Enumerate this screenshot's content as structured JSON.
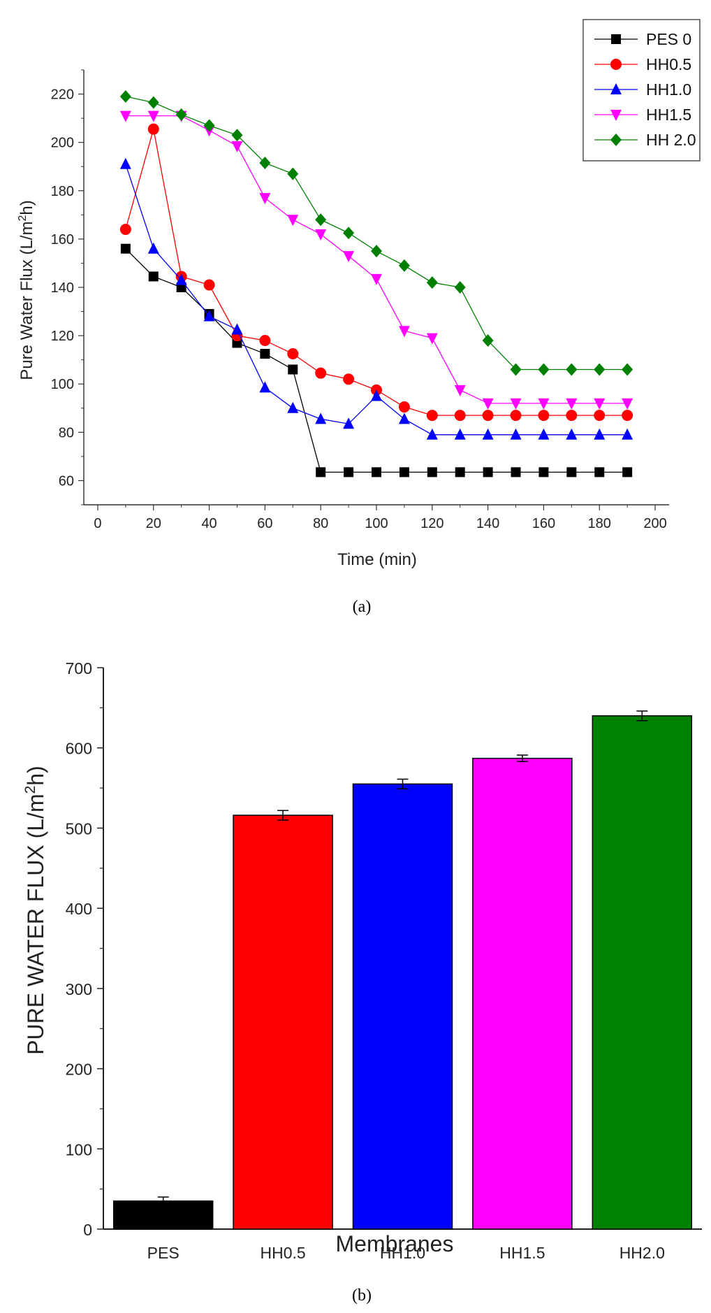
{
  "chart_data": [
    {
      "type": "line",
      "panel_label": "(a)",
      "xlabel": "Time (min)",
      "ylabel": "Pure Water Flux (L/m2h)",
      "ylabel_parts": {
        "pre": "Pure Water Flux (L/m",
        "sup": "2",
        "post": "h)"
      },
      "xlim": [
        -5,
        205
      ],
      "ylim": [
        50,
        230
      ],
      "xticks": [
        0,
        20,
        40,
        60,
        80,
        100,
        120,
        140,
        160,
        180,
        200
      ],
      "yticks": [
        60,
        80,
        100,
        120,
        140,
        160,
        180,
        200,
        220
      ],
      "legend_position": "top-right",
      "series": [
        {
          "name": "PES 0",
          "color": "#000000",
          "marker": "square",
          "x": [
            10,
            20,
            30,
            40,
            50,
            60,
            70,
            80,
            90,
            100,
            110,
            120,
            130,
            140,
            150,
            160,
            170,
            180,
            190
          ],
          "y": [
            156,
            144.5,
            140,
            129,
            117,
            112.5,
            106,
            63.5,
            63.5,
            63.5,
            63.5,
            63.5,
            63.5,
            63.5,
            63.5,
            63.5,
            63.5,
            63.5,
            63.5
          ]
        },
        {
          "name": "HH0.5",
          "color": "#ff0000",
          "marker": "circle",
          "x": [
            10,
            20,
            30,
            40,
            50,
            60,
            70,
            80,
            90,
            100,
            110,
            120,
            130,
            140,
            150,
            160,
            170,
            180,
            190
          ],
          "y": [
            164,
            205.5,
            144.5,
            141,
            120,
            118,
            112.5,
            104.5,
            102,
            97.5,
            90.5,
            87,
            87,
            87,
            87,
            87,
            87,
            87,
            87
          ]
        },
        {
          "name": "HH1.0",
          "color": "#0000ff",
          "marker": "triangle-up",
          "x": [
            10,
            20,
            30,
            40,
            50,
            60,
            70,
            80,
            90,
            100,
            110,
            120,
            130,
            140,
            150,
            160,
            170,
            180,
            190
          ],
          "y": [
            191,
            156,
            143,
            128,
            122.5,
            98.5,
            90,
            85.5,
            83.5,
            95,
            85.5,
            79,
            79,
            79,
            79,
            79,
            79,
            79,
            79
          ]
        },
        {
          "name": "HH1.5",
          "color": "#ff00ff",
          "marker": "triangle-down",
          "x": [
            10,
            20,
            30,
            40,
            50,
            60,
            70,
            80,
            90,
            100,
            110,
            120,
            130,
            140,
            150,
            160,
            170,
            180,
            190
          ],
          "y": [
            211,
            211,
            211,
            205,
            198.5,
            177,
            168,
            162,
            153,
            143.5,
            122,
            119,
            97.5,
            92,
            92,
            92,
            92,
            92,
            92
          ]
        },
        {
          "name": "HH 2.0",
          "color": "#008000",
          "marker": "diamond",
          "x": [
            10,
            20,
            30,
            40,
            50,
            60,
            70,
            80,
            90,
            100,
            110,
            120,
            130,
            140,
            150,
            160,
            170,
            180,
            190
          ],
          "y": [
            219,
            216.5,
            211.5,
            207,
            203,
            191.5,
            187,
            168,
            162.5,
            155,
            149,
            142,
            140,
            118,
            106,
            106,
            106,
            106,
            106
          ]
        }
      ]
    },
    {
      "type": "bar",
      "panel_label": "(b)",
      "xlabel": "Membranes",
      "ylabel": "PURE WATER FLUX (L/m2h)",
      "ylabel_parts": {
        "pre": "PURE WATER FLUX (L/m",
        "sup": "2",
        "post": "h)"
      },
      "ylim": [
        0,
        700
      ],
      "yticks": [
        0,
        100,
        200,
        300,
        400,
        500,
        600,
        700
      ],
      "categories": [
        "PES",
        "HH0.5",
        "HH1.0",
        "HH1.5",
        "HH2.0"
      ],
      "values": [
        35,
        516,
        555,
        587,
        640
      ],
      "errors": [
        5,
        6,
        6,
        4,
        6
      ],
      "colors": [
        "#000000",
        "#ff0000",
        "#0000ff",
        "#ff00ff",
        "#008000"
      ]
    }
  ]
}
